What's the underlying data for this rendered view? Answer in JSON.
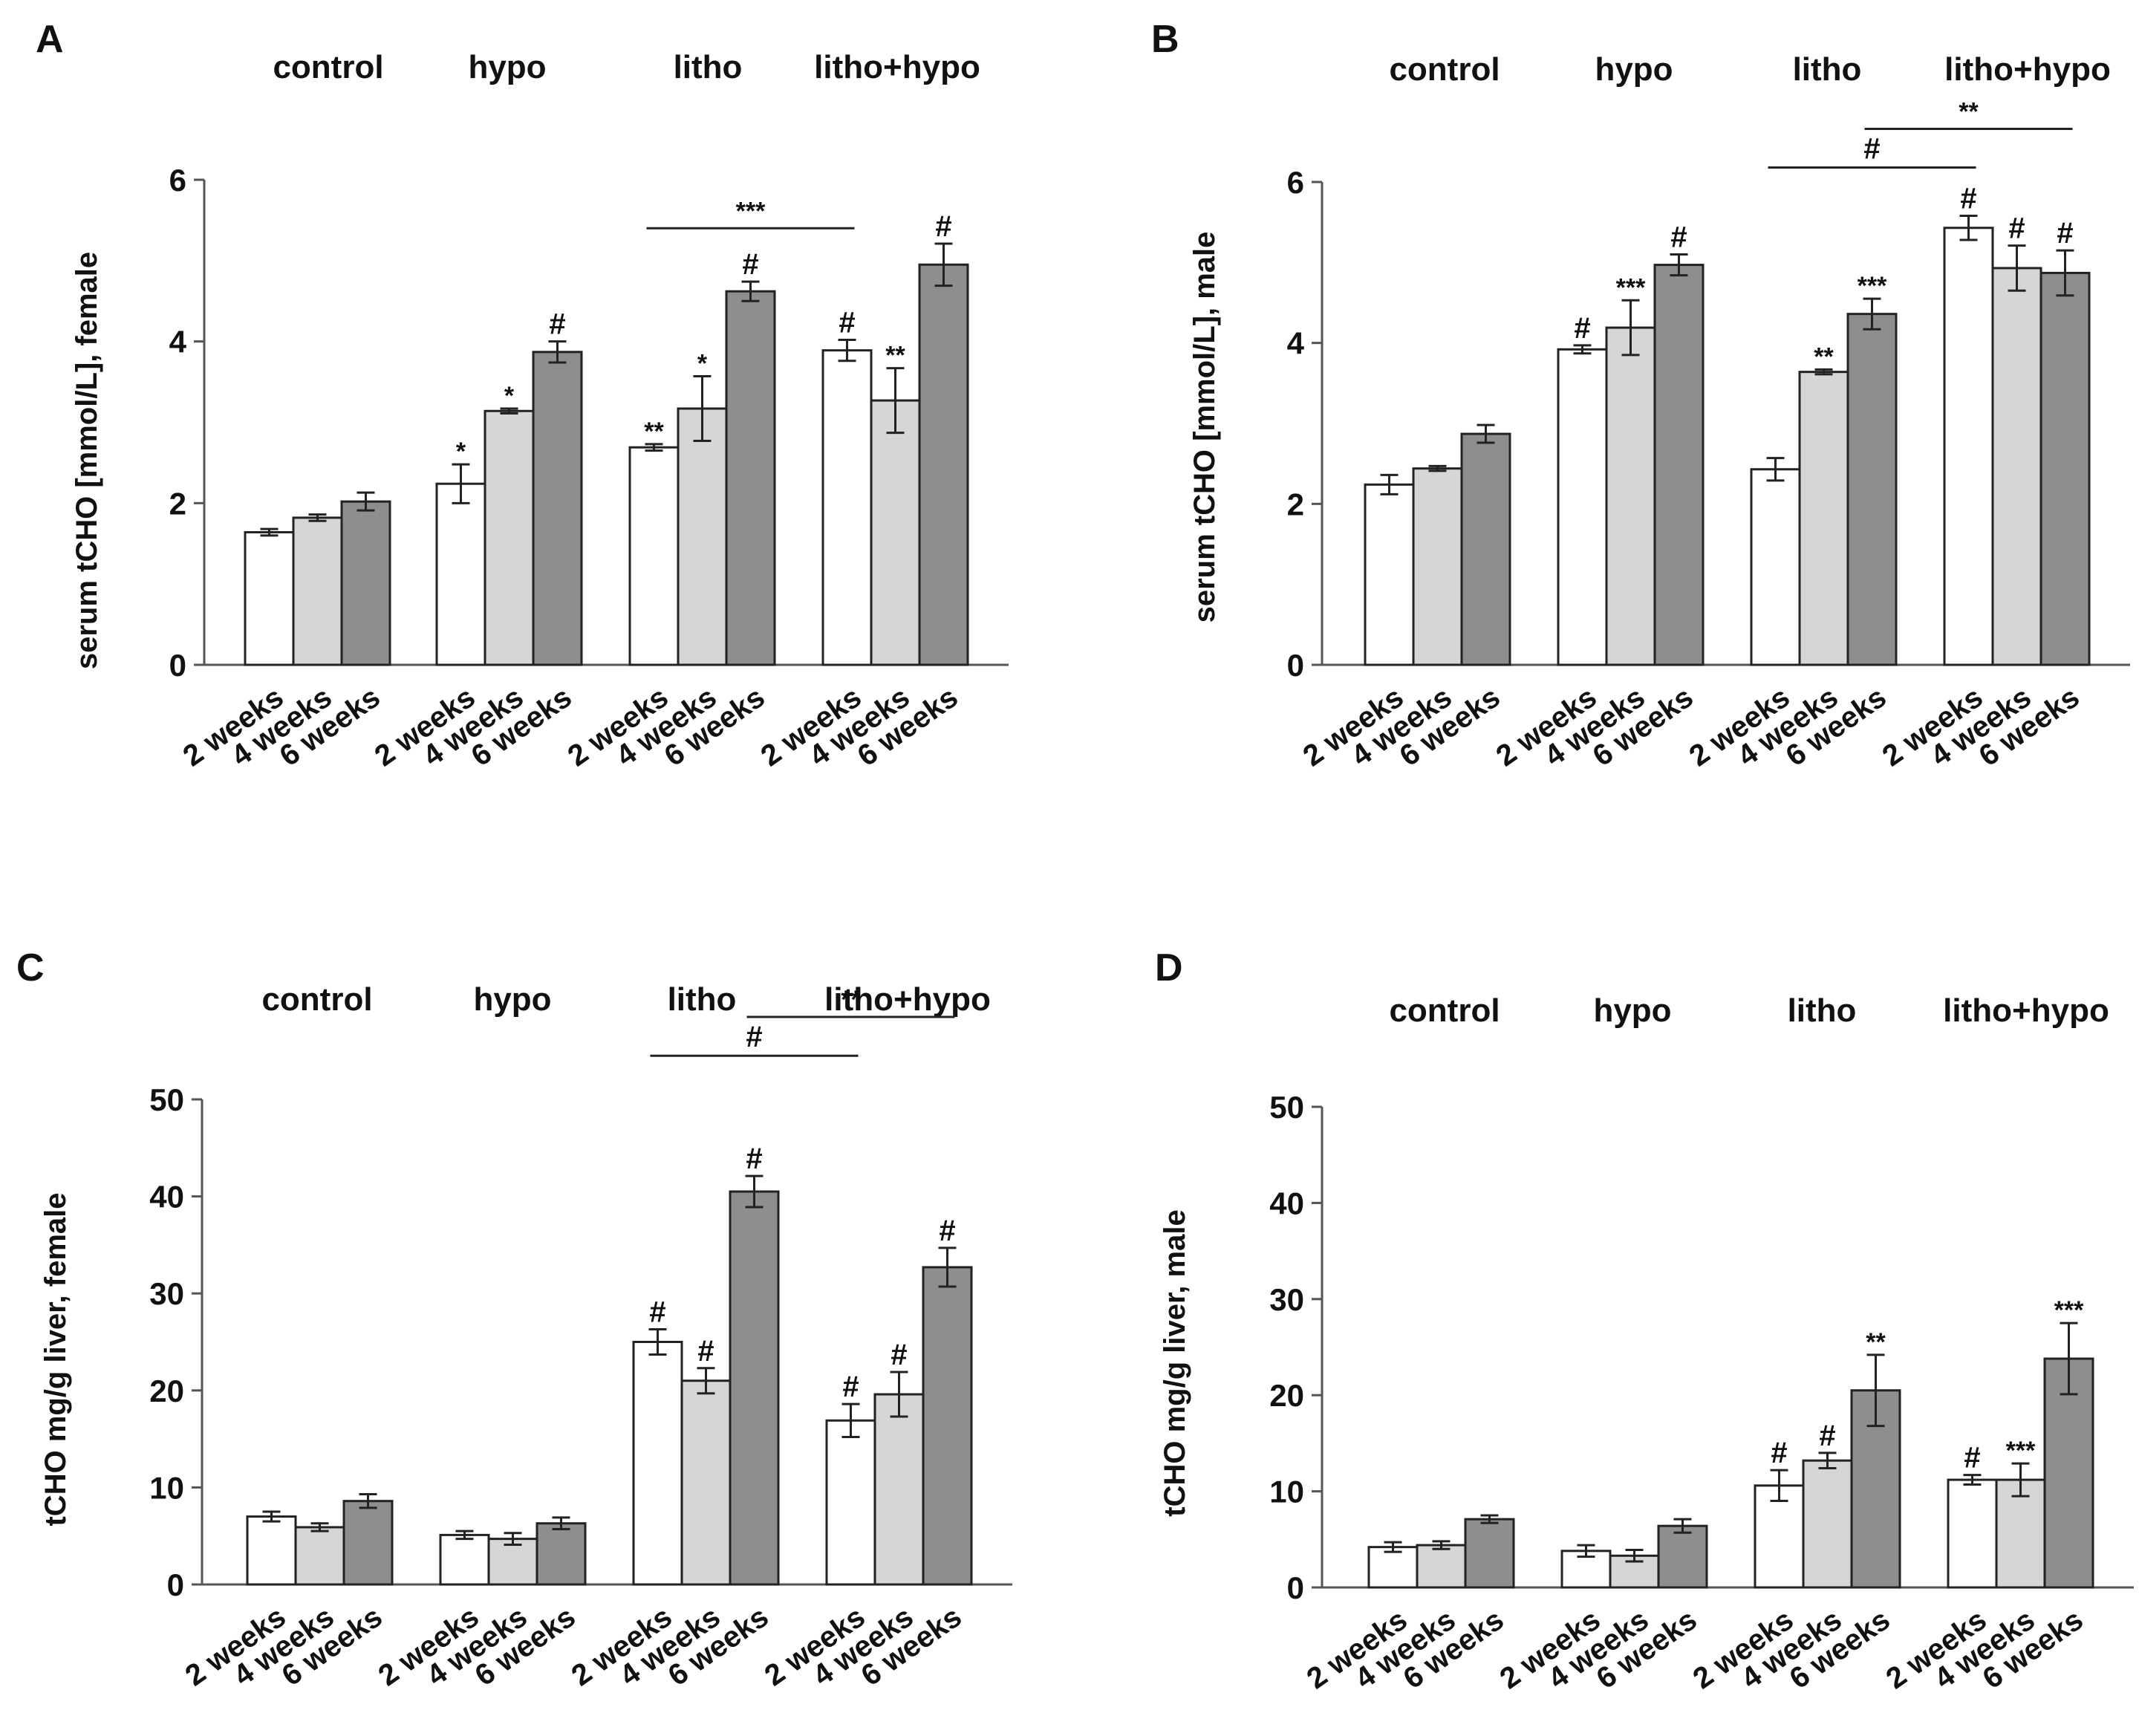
{
  "colors": {
    "w2": "#ffffff",
    "w4": "#d6d6d6",
    "w6": "#8e8e8e",
    "axis": "#555555",
    "ink": "#111111"
  },
  "x_tick_labels": [
    "2 weeks",
    "4 weeks",
    "6 weeks"
  ],
  "chart_data": [
    {
      "type": "bar",
      "panel": "A",
      "ylabel": "serum tCHO [mmol/L], female",
      "ylim": [
        0,
        6
      ],
      "yticks": [
        0,
        2,
        4,
        6
      ],
      "groups": [
        "control",
        "hypo",
        "litho",
        "litho+hypo"
      ],
      "series": [
        {
          "name": "2 weeks",
          "values": [
            1.64,
            2.24,
            2.69,
            3.89
          ],
          "errors": [
            0.04,
            0.24,
            0.04,
            0.13
          ],
          "labels": [
            "",
            "*",
            "**",
            "#"
          ]
        },
        {
          "name": "4 weeks",
          "values": [
            1.82,
            3.14,
            3.17,
            3.27
          ],
          "errors": [
            0.04,
            0.03,
            0.4,
            0.4
          ],
          "labels": [
            "",
            "*",
            "*",
            "**"
          ]
        },
        {
          "name": "6 weeks",
          "values": [
            2.02,
            3.87,
            4.62,
            4.95
          ],
          "errors": [
            0.11,
            0.13,
            0.12,
            0.26
          ],
          "labels": [
            "",
            "#",
            "#",
            "#"
          ]
        }
      ],
      "brackets": [
        {
          "from": [
            2,
            0
          ],
          "to": [
            3,
            0
          ],
          "label": "***",
          "level": 0.9
        }
      ]
    },
    {
      "type": "bar",
      "panel": "B",
      "ylabel": "serum tCHO [mmol/L], male",
      "ylim": [
        0,
        6
      ],
      "yticks": [
        0,
        2,
        4,
        6
      ],
      "groups": [
        "control",
        "hypo",
        "litho",
        "litho+hypo"
      ],
      "series": [
        {
          "name": "2 weeks",
          "values": [
            2.24,
            3.92,
            2.43,
            5.43
          ],
          "errors": [
            0.12,
            0.05,
            0.14,
            0.15
          ],
          "labels": [
            "",
            "#",
            "",
            "#"
          ]
        },
        {
          "name": "4 weeks",
          "values": [
            2.44,
            4.19,
            3.64,
            4.93
          ],
          "errors": [
            0.03,
            0.34,
            0.03,
            0.28
          ],
          "labels": [
            "",
            "***",
            "**",
            "#"
          ]
        },
        {
          "name": "6 weeks",
          "values": [
            2.87,
            4.97,
            4.36,
            4.87
          ],
          "errors": [
            0.11,
            0.13,
            0.19,
            0.28
          ],
          "labels": [
            "",
            "#",
            "***",
            "#"
          ]
        }
      ],
      "brackets": [
        {
          "from": [
            2,
            0
          ],
          "to": [
            3,
            0
          ],
          "label": "#",
          "level": 1.03
        },
        {
          "from": [
            2,
            2
          ],
          "to": [
            3,
            2
          ],
          "label": "**",
          "level": 1.11
        }
      ]
    },
    {
      "type": "bar",
      "panel": "C",
      "ylabel": "tCHO mg/g liver, female",
      "ylim": [
        0,
        50
      ],
      "yticks": [
        0,
        10,
        20,
        30,
        40,
        50
      ],
      "groups": [
        "control",
        "hypo",
        "litho",
        "litho+hypo"
      ],
      "series": [
        {
          "name": "2 weeks",
          "values": [
            7.0,
            5.1,
            25.0,
            16.9
          ],
          "errors": [
            0.5,
            0.4,
            1.3,
            1.7
          ],
          "labels": [
            "",
            "",
            "#",
            "#"
          ]
        },
        {
          "name": "4 weeks",
          "values": [
            5.9,
            4.7,
            21.0,
            19.6
          ],
          "errors": [
            0.4,
            0.6,
            1.3,
            2.3
          ],
          "labels": [
            "",
            "",
            "#",
            "#"
          ]
        },
        {
          "name": "6 weeks",
          "values": [
            8.6,
            6.3,
            40.5,
            32.7
          ],
          "errors": [
            0.7,
            0.6,
            1.6,
            2.0
          ],
          "labels": [
            "",
            "",
            "#",
            "#"
          ]
        }
      ],
      "brackets": [
        {
          "from": [
            2,
            0
          ],
          "to": [
            3,
            0
          ],
          "label": "#",
          "level": 1.09
        },
        {
          "from": [
            2,
            2
          ],
          "to": [
            3,
            2
          ],
          "label": "**",
          "level": 1.17
        }
      ]
    },
    {
      "type": "bar",
      "panel": "D",
      "ylabel": "tCHO mg/g liver, male",
      "ylim": [
        0,
        50
      ],
      "yticks": [
        0,
        10,
        20,
        30,
        40,
        50
      ],
      "groups": [
        "control",
        "hypo",
        "litho",
        "litho+hypo"
      ],
      "series": [
        {
          "name": "2 weeks",
          "values": [
            4.2,
            3.8,
            10.6,
            11.2
          ],
          "errors": [
            0.5,
            0.6,
            1.6,
            0.5
          ],
          "labels": [
            "",
            "",
            "#",
            "#"
          ]
        },
        {
          "name": "4 weeks",
          "values": [
            4.4,
            3.3,
            13.2,
            11.2
          ],
          "errors": [
            0.4,
            0.6,
            0.8,
            1.7
          ],
          "labels": [
            "",
            "",
            "#",
            "***"
          ]
        },
        {
          "name": "6 weeks",
          "values": [
            7.1,
            6.4,
            20.5,
            23.8
          ],
          "errors": [
            0.4,
            0.7,
            3.7,
            3.7
          ],
          "labels": [
            "",
            "",
            "**",
            "***"
          ]
        }
      ],
      "brackets": []
    }
  ]
}
